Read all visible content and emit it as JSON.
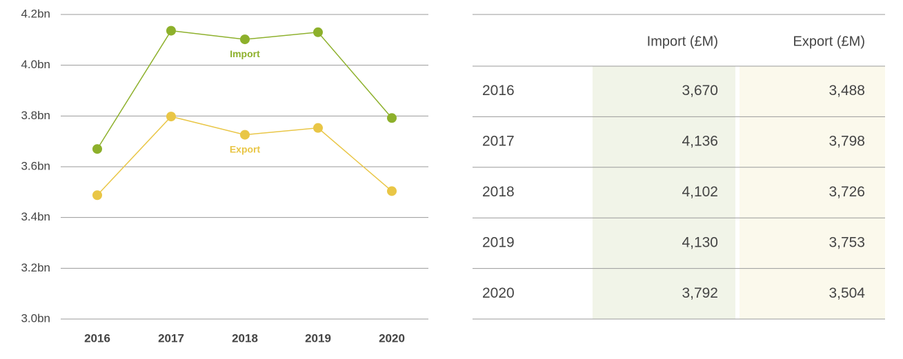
{
  "chart_data": {
    "type": "line",
    "categories": [
      "2016",
      "2017",
      "2018",
      "2019",
      "2020"
    ],
    "series": [
      {
        "name": "Import",
        "color": "#8db02b",
        "values": [
          3.67,
          4.136,
          4.102,
          4.13,
          3.792
        ]
      },
      {
        "name": "Export",
        "color": "#e9c646",
        "values": [
          3.488,
          3.798,
          3.726,
          3.753,
          3.504
        ]
      }
    ],
    "ylim": [
      3.0,
      4.2
    ],
    "yticks": [
      {
        "value": 3.0,
        "label": "3.0bn"
      },
      {
        "value": 3.2,
        "label": "3.2bn"
      },
      {
        "value": 3.4,
        "label": "3.4bn"
      },
      {
        "value": 3.6,
        "label": "3.6bn"
      },
      {
        "value": 3.8,
        "label": "3.8bn"
      },
      {
        "value": 4.0,
        "label": "4.0bn"
      },
      {
        "value": 4.2,
        "label": "4.2bn"
      }
    ],
    "grid": true
  },
  "table": {
    "columns": [
      "Import (£M)",
      "Export (£M)"
    ],
    "rows": [
      [
        "2016",
        "3,670",
        "3,488"
      ],
      [
        "2017",
        "4,136",
        "3,798"
      ],
      [
        "2018",
        "4,102",
        "3,726"
      ],
      [
        "2019",
        "4,130",
        "3,753"
      ],
      [
        "2020",
        "3,792",
        "3,504"
      ]
    ]
  }
}
